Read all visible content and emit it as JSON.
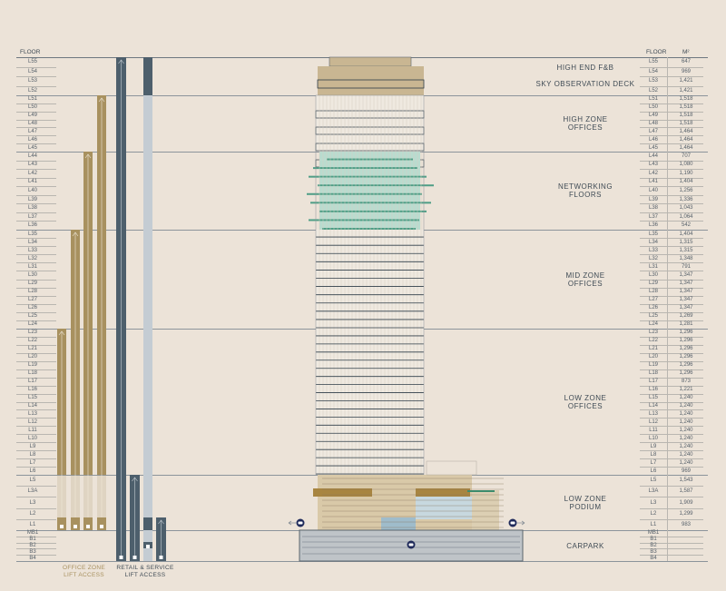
{
  "headers": {
    "floor_left": "FLOOR",
    "floor_right": "FLOOR",
    "area": "M²"
  },
  "zones": [
    {
      "name": "HIGH END F&B / SKY OBSERVATION DECK",
      "labels": [
        "HIGH END F&B",
        "SKY OBSERVATION DECK"
      ],
      "floors": [
        [
          "L55",
          "647"
        ],
        [
          "L54",
          "969"
        ],
        [
          "L53",
          "1,421"
        ],
        [
          "L52",
          "1,421"
        ]
      ]
    },
    {
      "name": "HIGH ZONE OFFICES",
      "labels": [
        "HIGH ZONE",
        "OFFICES"
      ],
      "floors": [
        [
          "L51",
          "1,518"
        ],
        [
          "L50",
          "1,518"
        ],
        [
          "L49",
          "1,518"
        ],
        [
          "L48",
          "1,518"
        ],
        [
          "L47",
          "1,464"
        ],
        [
          "L46",
          "1,464"
        ],
        [
          "L45",
          "1,464"
        ]
      ]
    },
    {
      "name": "NETWORKING FLOORS",
      "labels": [
        "NETWORKING",
        "FLOORS"
      ],
      "floors": [
        [
          "L44",
          "707"
        ],
        [
          "L43",
          "1,080"
        ],
        [
          "L42",
          "1,190"
        ],
        [
          "L41",
          "1,404"
        ],
        [
          "L40",
          "1,256"
        ],
        [
          "L39",
          "1,336"
        ],
        [
          "L38",
          "1,043"
        ],
        [
          "L37",
          "1,064"
        ],
        [
          "L36",
          "542"
        ]
      ]
    },
    {
      "name": "MID ZONE OFFICES",
      "labels": [
        "MID ZONE",
        "OFFICES"
      ],
      "floors": [
        [
          "L35",
          "1,404"
        ],
        [
          "L34",
          "1,315"
        ],
        [
          "L33",
          "1,315"
        ],
        [
          "L32",
          "1,348"
        ],
        [
          "L31",
          "791"
        ],
        [
          "L30",
          "1,347"
        ],
        [
          "L29",
          "1,347"
        ],
        [
          "L28",
          "1,347"
        ],
        [
          "L27",
          "1,347"
        ],
        [
          "L26",
          "1,347"
        ],
        [
          "L25",
          "1,269"
        ],
        [
          "L24",
          "1,281"
        ]
      ]
    },
    {
      "name": "LOW ZONE OFFICES",
      "labels": [
        "LOW ZONE",
        "OFFICES"
      ],
      "floors": [
        [
          "L23",
          "1,296"
        ],
        [
          "L22",
          "1,296"
        ],
        [
          "L21",
          "1,296"
        ],
        [
          "L20",
          "1,296"
        ],
        [
          "L19",
          "1,296"
        ],
        [
          "L18",
          "1,296"
        ],
        [
          "L17",
          "873"
        ],
        [
          "L16",
          "1,221"
        ],
        [
          "L15",
          "1,240"
        ],
        [
          "L14",
          "1,240"
        ],
        [
          "L13",
          "1,240"
        ],
        [
          "L12",
          "1,240"
        ],
        [
          "L11",
          "1,240"
        ],
        [
          "L10",
          "1,240"
        ],
        [
          "L9",
          "1,240"
        ],
        [
          "L8",
          "1,240"
        ],
        [
          "L7",
          "1,240"
        ],
        [
          "L6",
          "969"
        ]
      ]
    },
    {
      "name": "LOW ZONE PODIUM",
      "labels": [
        "LOW ZONE",
        "PODIUM"
      ],
      "floors": [
        [
          "L5",
          "1,543"
        ],
        [
          "L3A",
          "1,587"
        ],
        [
          "L3",
          "1,909"
        ],
        [
          "L2",
          "1,299"
        ],
        [
          "L1",
          "983"
        ]
      ]
    },
    {
      "name": "CARPARK",
      "labels": [
        "CARPARK"
      ],
      "floors": [
        [
          "MB1",
          ""
        ],
        [
          "B1",
          ""
        ],
        [
          "B2",
          ""
        ],
        [
          "B3",
          ""
        ],
        [
          "B4",
          ""
        ]
      ]
    }
  ],
  "legend": {
    "office": [
      "OFFICE ZONE",
      "LIFT ACCESS"
    ],
    "retail": [
      "RETAIL & SERVICE",
      "LIFT ACCESS"
    ]
  },
  "colors": {
    "office_lift": "#a8915f",
    "service_lift": "#4d5f6c",
    "service_lift_light": "#c4ccd3",
    "glass_green": "#7fc9b4",
    "tan": "#c9b692",
    "background": "#ece3d8"
  }
}
